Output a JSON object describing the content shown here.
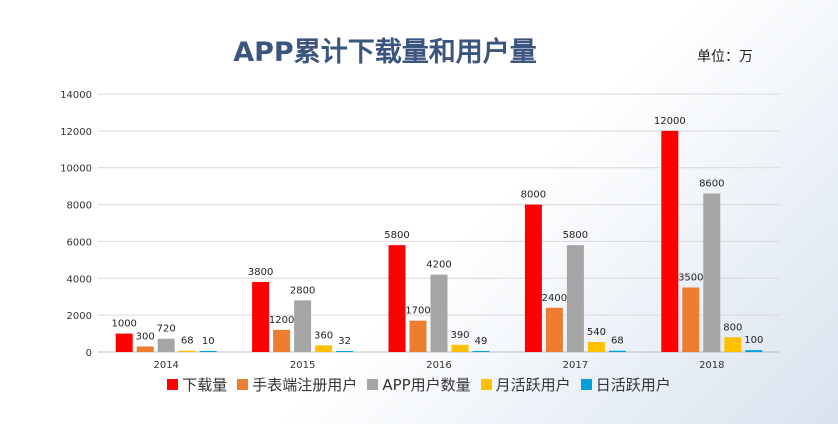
{
  "chart_data": {
    "type": "bar",
    "title": "APP累计下载量和用户量",
    "unit_label": "单位：万",
    "categories": [
      "2014",
      "2015",
      "2016",
      "2017",
      "2018"
    ],
    "series": [
      {
        "name": "下载量",
        "color": "#ff0000",
        "values": [
          1000,
          3800,
          5800,
          8000,
          12000
        ]
      },
      {
        "name": "手表端注册用户",
        "color": "#ed7d31",
        "values": [
          300,
          1200,
          1700,
          2400,
          3500
        ]
      },
      {
        "name": "APP用户数量",
        "color": "#a5a5a5",
        "values": [
          720,
          2800,
          4200,
          5800,
          8600
        ]
      },
      {
        "name": "月活跃用户",
        "color": "#ffc000",
        "values": [
          68,
          360,
          390,
          540,
          800
        ]
      },
      {
        "name": "日活跃用户",
        "color": "#00a0e0",
        "values": [
          10,
          32,
          49,
          68,
          100
        ]
      }
    ],
    "ylim": [
      0,
      14000
    ],
    "yticks": [
      0,
      2000,
      4000,
      6000,
      8000,
      10000,
      12000,
      14000
    ],
    "grid": true,
    "legend_position": "bottom"
  }
}
